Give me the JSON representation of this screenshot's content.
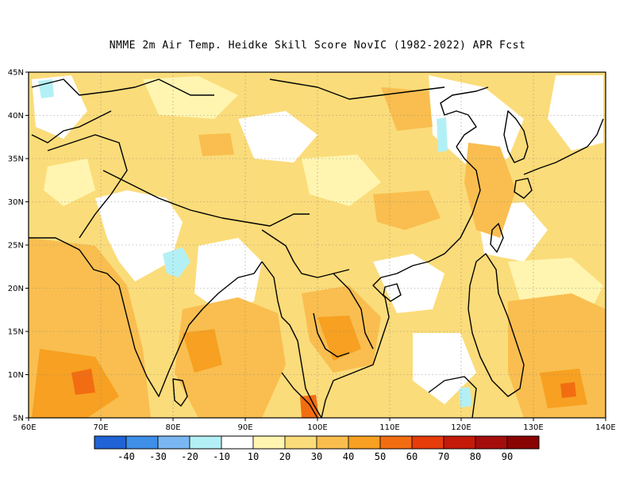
{
  "title": "NMME  2m Air Temp. Heidke Skill Score NovIC (1982-2022) APR Fcst",
  "map": {
    "lon_range": [
      60,
      140
    ],
    "lat_range": [
      5,
      45
    ],
    "x_ticks": [
      "60E",
      "70E",
      "80E",
      "90E",
      "100E",
      "110E",
      "120E",
      "130E",
      "140E"
    ],
    "y_ticks": [
      "5N",
      "10N",
      "15N",
      "20N",
      "25N",
      "30N",
      "35N",
      "40N",
      "45N"
    ],
    "gridlines": "dotted"
  },
  "colorbar": {
    "labels": [
      "-40",
      "-30",
      "-20",
      "-10",
      "10",
      "20",
      "30",
      "40",
      "50",
      "60",
      "70",
      "80",
      "90"
    ],
    "colors": [
      "#1f63d6",
      "#3f8ee8",
      "#7ab7f2",
      "#b3f0f5",
      "#ffffff",
      "#fff5b0",
      "#fbdc7a",
      "#f9be4f",
      "#f7a021",
      "#f26d12",
      "#e63d0a",
      "#c41a0a",
      "#a50d0d",
      "#8a0303"
    ]
  },
  "colors": {
    "land_outline": "#000000",
    "grid": "#8a8a8a"
  }
}
